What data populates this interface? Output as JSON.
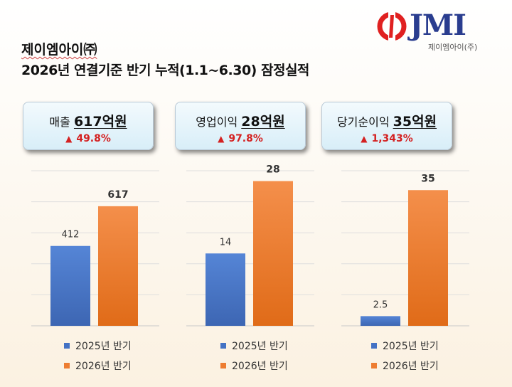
{
  "header": {
    "company": "제이엠아이㈜",
    "headline": "2026년 연결기준 반기 누적(1.1~6.30) 잠정실적"
  },
  "logo": {
    "text": "JMI",
    "subtext": "제이엠아이(주)"
  },
  "colors": {
    "series_2025": "#4472c4",
    "series_2026": "#ed7d31",
    "increase": "#d42121",
    "logo_blue": "#2a3d8f",
    "logo_red": "#e02020"
  },
  "kpis": [
    {
      "label": "매출",
      "value": "617억원",
      "change_icon": "up-triangle",
      "change": "49.8%"
    },
    {
      "label": "영업이익",
      "value": "28억원",
      "change_icon": "up-triangle",
      "change": "97.8%"
    },
    {
      "label": "당기순이익",
      "value": "35억원",
      "change_icon": "up-triangle",
      "change": "1,343%"
    }
  ],
  "chart_data": [
    {
      "type": "bar",
      "categories": [
        ""
      ],
      "series": [
        {
          "name": "2025년 반기",
          "values": [
            412
          ],
          "labels": [
            "412"
          ]
        },
        {
          "name": "2026년 반기",
          "values": [
            617
          ],
          "labels": [
            "617"
          ]
        }
      ],
      "ylim": [
        0,
        800
      ],
      "grid": true,
      "legend": "bottom"
    },
    {
      "type": "bar",
      "categories": [
        ""
      ],
      "series": [
        {
          "name": "2025년 반기",
          "values": [
            14
          ],
          "labels": [
            "14"
          ]
        },
        {
          "name": "2026년 반기",
          "values": [
            28
          ],
          "labels": [
            "28"
          ]
        }
      ],
      "ylim": [
        0,
        30
      ],
      "grid": true,
      "legend": "bottom"
    },
    {
      "type": "bar",
      "categories": [
        ""
      ],
      "series": [
        {
          "name": "2025년 반기",
          "values": [
            2.5
          ],
          "labels": [
            "2.5"
          ]
        },
        {
          "name": "2026년 반기",
          "values": [
            35
          ],
          "labels": [
            "35"
          ]
        }
      ],
      "ylim": [
        0,
        40
      ],
      "grid": true,
      "legend": "bottom"
    }
  ]
}
